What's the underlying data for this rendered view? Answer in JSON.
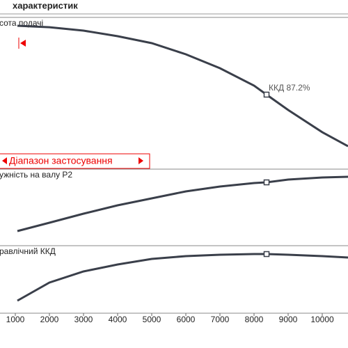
{
  "title": "характеристик",
  "chart_data": [
    {
      "type": "line",
      "label": "сота подачі",
      "annotation": "ККД  87.2%",
      "range_label": "Діапазон застосування",
      "x": [
        1061,
        2000,
        3000,
        4000,
        5000,
        6000,
        7000,
        8000,
        8367,
        9000,
        10000,
        10755
      ],
      "xlim": [
        551,
        10755
      ],
      "ylim": [
        0,
        100
      ],
      "color": "#3a3f4a",
      "values": [
        93.7,
        92.6,
        90,
        85.8,
        80.5,
        72.1,
        61.6,
        48.4,
        41.6,
        30,
        13.2,
        2.6
      ]
    },
    {
      "type": "line",
      "label": "ужність на валу  P2",
      "x": [
        1061,
        2000,
        3000,
        4000,
        5000,
        6000,
        7000,
        8000,
        8367,
        9000,
        10000,
        10755
      ],
      "xlim": [
        551,
        10755
      ],
      "ylim": [
        0,
        100
      ],
      "color": "#3a3f4a",
      "values": [
        8.2,
        20.6,
        34,
        46.4,
        56.7,
        67,
        74.2,
        79.4,
        80.4,
        84.5,
        87.6,
        88.7
      ]
    },
    {
      "type": "line",
      "label": "равлічний ККД",
      "x": [
        1061,
        2000,
        3000,
        4000,
        5000,
        6000,
        7000,
        8000,
        8367,
        9000,
        10000,
        10755
      ],
      "xlim": [
        551,
        10755
      ],
      "ylim": [
        0,
        100
      ],
      "color": "#3a3f4a",
      "values": [
        18.6,
        45.4,
        61.9,
        72.2,
        80.4,
        84.5,
        86.6,
        87.6,
        87.6,
        86.6,
        84.5,
        82.5
      ],
      "xticks": [
        1000,
        2000,
        3000,
        4000,
        5000,
        6000,
        7000,
        8000,
        9000,
        10000
      ]
    }
  ]
}
